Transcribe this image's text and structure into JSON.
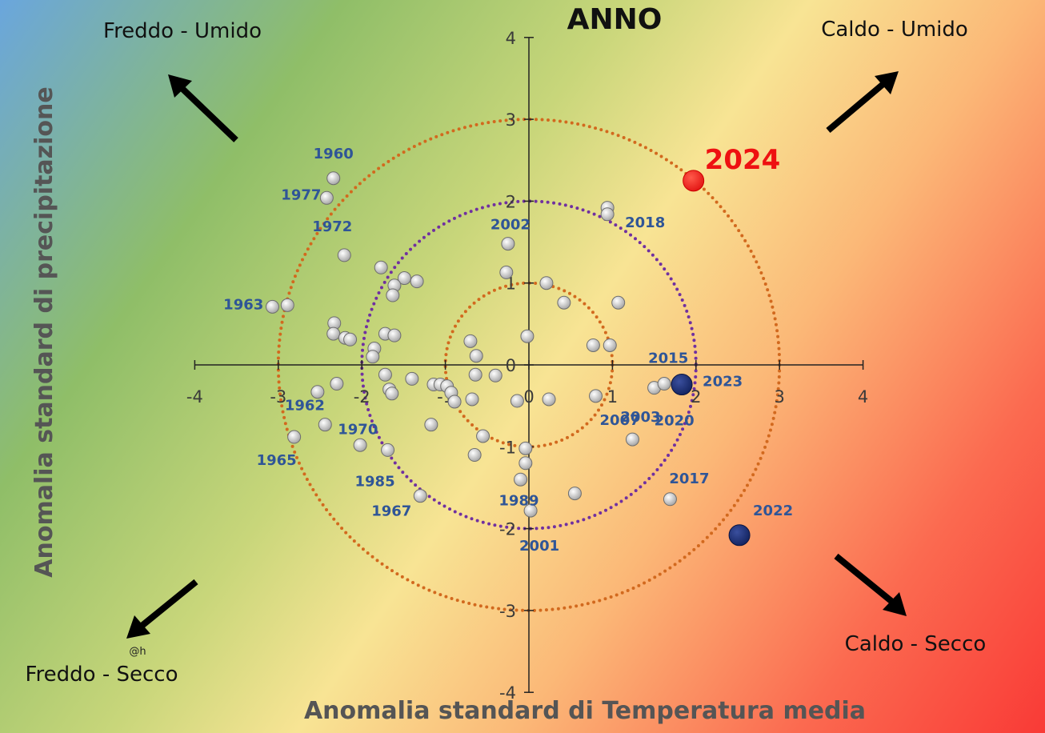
{
  "chart_data": {
    "type": "scatter",
    "title": "ANNO",
    "xlabel": "Anomalia standard di Temperatura media",
    "ylabel": "Anomalia standard di precipitazione",
    "xlim": [
      -4,
      4
    ],
    "ylim": [
      -4,
      4
    ],
    "xticks": [
      "-4",
      "-3",
      "-2",
      "-1",
      "0",
      "1",
      "2",
      "3",
      "4"
    ],
    "yticks": [
      "4",
      "3",
      "2",
      "1",
      "0",
      "-1",
      "-2",
      "-3",
      "-4"
    ],
    "quadrants": {
      "top_left": "Freddo - Umido",
      "top_right": "Caldo - Umido",
      "bottom_left": "Freddo - Secco",
      "bottom_right": "Caldo - Secco"
    },
    "watermark": "@h",
    "circles": [
      {
        "radius": 1,
        "color": "#d2691e"
      },
      {
        "radius": 2,
        "color": "#7030a0"
      },
      {
        "radius": 3,
        "color": "#d2691e"
      }
    ],
    "points": [
      {
        "x": -2.34,
        "y": 2.28,
        "year": "1960"
      },
      {
        "x": -2.42,
        "y": 2.04,
        "year": "1977"
      },
      {
        "x": -2.21,
        "y": 1.34,
        "year": "1972"
      },
      {
        "x": -2.89,
        "y": 0.73,
        "year": "1963"
      },
      {
        "x": -3.07,
        "y": 0.71
      },
      {
        "x": -1.77,
        "y": 1.19
      },
      {
        "x": -1.49,
        "y": 1.06
      },
      {
        "x": -1.61,
        "y": 0.97
      },
      {
        "x": -1.34,
        "y": 1.02
      },
      {
        "x": -1.63,
        "y": 0.85
      },
      {
        "x": -0.25,
        "y": 1.48,
        "year": "2002"
      },
      {
        "x": -0.27,
        "y": 1.13
      },
      {
        "x": -2.33,
        "y": 0.51
      },
      {
        "x": -2.34,
        "y": 0.38
      },
      {
        "x": -2.2,
        "y": 0.33
      },
      {
        "x": -2.14,
        "y": 0.31
      },
      {
        "x": -1.72,
        "y": 0.38
      },
      {
        "x": -1.61,
        "y": 0.36
      },
      {
        "x": -1.85,
        "y": 0.2
      },
      {
        "x": -1.87,
        "y": 0.1
      },
      {
        "x": -0.7,
        "y": 0.29
      },
      {
        "x": -0.63,
        "y": 0.11
      },
      {
        "x": -1.72,
        "y": -0.12
      },
      {
        "x": -1.4,
        "y": -0.17
      },
      {
        "x": -2.3,
        "y": -0.23,
        "year": "1962"
      },
      {
        "x": -2.53,
        "y": -0.33
      },
      {
        "x": -1.67,
        "y": -0.3
      },
      {
        "x": -1.64,
        "y": -0.35
      },
      {
        "x": -1.14,
        "y": -0.24
      },
      {
        "x": -1.06,
        "y": -0.24
      },
      {
        "x": -0.98,
        "y": -0.26
      },
      {
        "x": -0.93,
        "y": -0.34
      },
      {
        "x": -0.89,
        "y": -0.45
      },
      {
        "x": -0.64,
        "y": -0.12
      },
      {
        "x": -0.4,
        "y": -0.13
      },
      {
        "x": -0.68,
        "y": -0.42
      },
      {
        "x": -0.14,
        "y": -0.44
      },
      {
        "x": 0.24,
        "y": -0.42
      },
      {
        "x": -2.44,
        "y": -0.73,
        "year": "1970"
      },
      {
        "x": -2.81,
        "y": -0.88,
        "year": "1965"
      },
      {
        "x": -1.17,
        "y": -0.73
      },
      {
        "x": -1.69,
        "y": -1.04,
        "year": "1985"
      },
      {
        "x": -2.02,
        "y": -0.98
      },
      {
        "x": -0.55,
        "y": -0.87
      },
      {
        "x": -0.65,
        "y": -1.1
      },
      {
        "x": -0.04,
        "y": -1.02
      },
      {
        "x": -0.04,
        "y": -1.2
      },
      {
        "x": -0.1,
        "y": -1.4
      },
      {
        "x": -1.3,
        "y": -1.6,
        "year": "1967"
      },
      {
        "x": 0.55,
        "y": -1.57,
        "year": "1989"
      },
      {
        "x": 0.02,
        "y": -1.78,
        "year": "2001"
      },
      {
        "x": 0.21,
        "y": 1.0
      },
      {
        "x": 0.42,
        "y": 0.76
      },
      {
        "x": 1.07,
        "y": 0.76
      },
      {
        "x": -0.02,
        "y": 0.35
      },
      {
        "x": 0.94,
        "y": 1.92
      },
      {
        "x": 0.94,
        "y": 1.84,
        "year": "2018"
      },
      {
        "x": 0.77,
        "y": 0.24
      },
      {
        "x": 0.97,
        "y": 0.24
      },
      {
        "x": 0.8,
        "y": -0.38,
        "year": "2007"
      },
      {
        "x": 1.24,
        "y": -0.91,
        "year": "2003"
      },
      {
        "x": 1.5,
        "y": -0.28,
        "year": "2020"
      },
      {
        "x": 1.62,
        "y": -0.23,
        "year": "2015"
      },
      {
        "x": 1.69,
        "y": -1.64,
        "year": "2017"
      },
      {
        "x": 1.83,
        "y": -0.24,
        "year": "2023",
        "highlight": "navy"
      },
      {
        "x": 2.52,
        "y": -2.08,
        "year": "2022",
        "highlight": "navy"
      },
      {
        "x": 1.97,
        "y": 2.25,
        "year": "2024",
        "highlight": "red"
      }
    ]
  }
}
